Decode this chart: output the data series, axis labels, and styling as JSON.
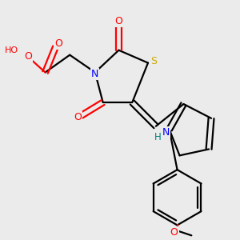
{
  "bg_color": "#ebebeb",
  "bond_color": "#000000",
  "atom_colors": {
    "O": "#ff0000",
    "N": "#0000ff",
    "S": "#ccaa00",
    "H": "#008080",
    "C": "#000000"
  },
  "line_width": 1.6,
  "figsize": [
    3.0,
    3.0
  ],
  "dpi": 100
}
